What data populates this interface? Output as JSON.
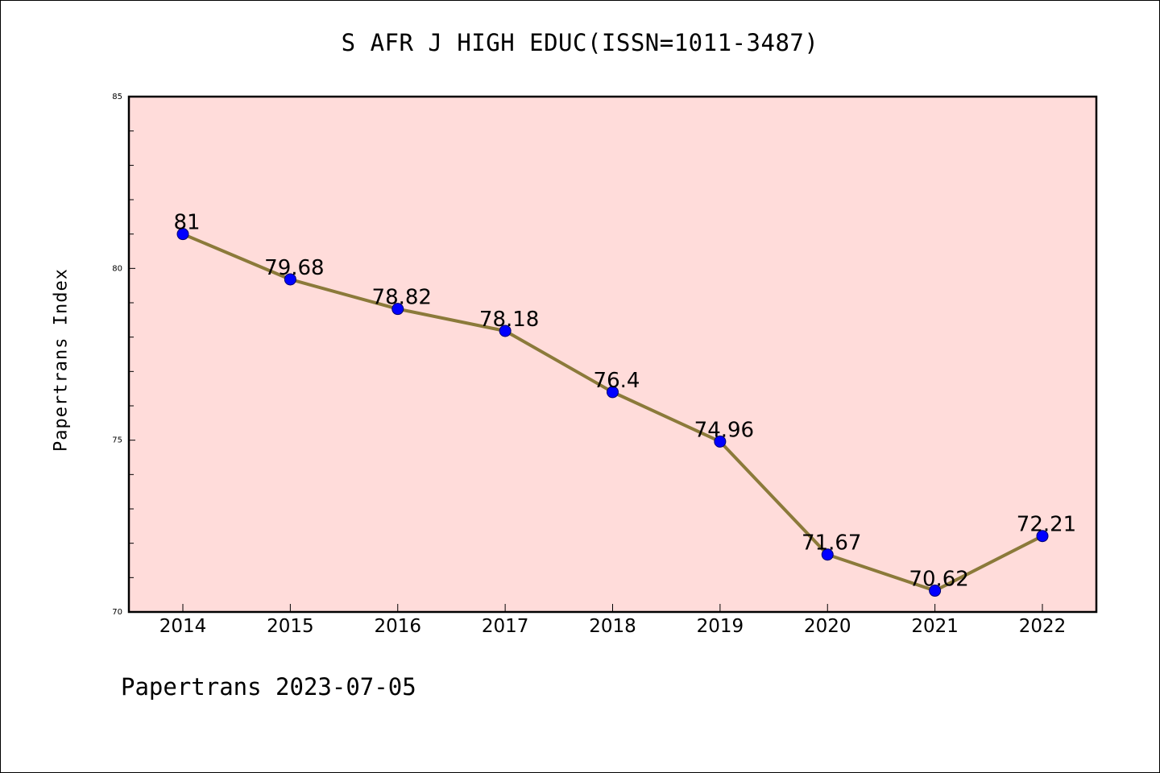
{
  "chart_data": {
    "type": "line",
    "title": "S AFR J HIGH EDUC(ISSN=1011-3487)",
    "ylabel": "Papertrans Index",
    "xlabel": "",
    "categories": [
      "2014",
      "2015",
      "2016",
      "2017",
      "2018",
      "2019",
      "2020",
      "2021",
      "2022"
    ],
    "values": [
      81,
      79.68,
      78.82,
      78.18,
      76.4,
      74.96,
      71.67,
      70.62,
      72.21
    ],
    "data_labels": [
      "81",
      "79.68",
      "78.82",
      "78.18",
      "76.4",
      "74.96",
      "71.67",
      "70.62",
      "72.21"
    ],
    "ylim": [
      70,
      85
    ],
    "yticks": [
      "70",
      "75",
      "80",
      "85"
    ],
    "grid": false,
    "legend": "none"
  },
  "footer": {
    "text": "Papertrans 2023-07-05"
  },
  "colors": {
    "plot_background": "#ffdcda",
    "line": "#8b7a3a",
    "marker": "#0000ff",
    "marker_edge": "#00006e"
  }
}
